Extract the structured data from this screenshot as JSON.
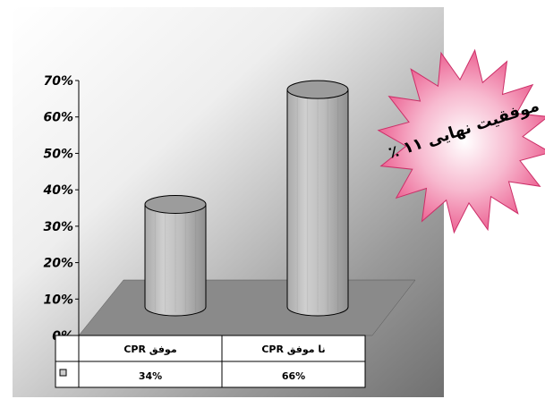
{
  "chart_data": {
    "type": "bar",
    "style": "3d-cylinder",
    "categories": [
      "موفق CPR",
      "نا موفق CPR"
    ],
    "values": [
      34,
      66
    ],
    "value_labels": [
      "34%",
      "66%"
    ],
    "ylim": [
      0,
      70
    ],
    "yticks": [
      0,
      10,
      20,
      30,
      40,
      50,
      60,
      70
    ],
    "ytick_labels": [
      "0%",
      "10%",
      "20%",
      "30%",
      "40%",
      "50%",
      "60%",
      "70%"
    ],
    "grid": false,
    "legend": "data-table-below",
    "colors": {
      "bar": "#bfbfbf",
      "floor": "#8a8a8a",
      "burst": "#ee4f86"
    }
  },
  "annotation": {
    "line1": "موفقیت نهایی ۱۱ ٪"
  }
}
